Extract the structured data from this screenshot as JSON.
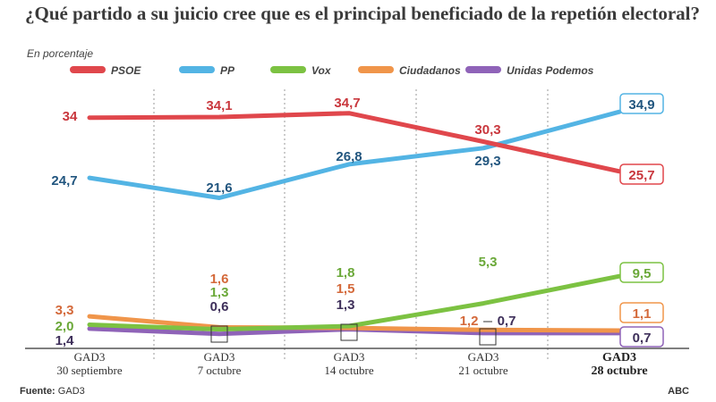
{
  "title": "¿Qué partido a su juicio cree que es el principal beneficiado de la repetión electoral?",
  "subtitle": "En porcentaje",
  "footer": {
    "source_label": "Fuente:",
    "source_value": "GAD3",
    "brand": "ABC"
  },
  "chart_data": {
    "type": "line",
    "categories": [
      "GAD3|30 septiembre",
      "GAD3|7 octubre",
      "GAD3|14 octubre",
      "GAD3|21 octubre",
      "GAD3|28 octubre"
    ],
    "series": [
      {
        "name": "PSOE",
        "color": "#e0474c",
        "values": [
          34,
          34.1,
          34.7,
          30.3,
          25.7
        ],
        "labels": [
          "34",
          "34,1",
          "34,7",
          "30,3",
          "25,7"
        ]
      },
      {
        "name": "PP",
        "color": "#53b4e4",
        "values": [
          24.7,
          21.6,
          26.8,
          29.3,
          34.9
        ],
        "labels": [
          "24,7",
          "21,6",
          "26,8",
          "29,3",
          "34,9"
        ]
      },
      {
        "name": "Vox",
        "color": "#7cc242",
        "values": [
          2.0,
          1.3,
          1.8,
          5.3,
          9.5
        ],
        "labels": [
          "2,0",
          "1,3",
          "1,8",
          "5,3",
          "9,5"
        ]
      },
      {
        "name": "Ciudadanos",
        "color": "#f0954a",
        "values": [
          3.3,
          1.6,
          1.5,
          1.2,
          1.1
        ],
        "labels": [
          "3,3",
          "1,6",
          "1,5",
          "1,2",
          "1,1"
        ]
      },
      {
        "name": "Unidas Podemos",
        "color": "#8f63b8",
        "values": [
          1.4,
          0.6,
          1.3,
          0.7,
          0.7
        ],
        "labels": [
          "1,4",
          "0,6",
          "1,3",
          "0,7",
          "0,7"
        ]
      }
    ],
    "label_colors": {
      "PSOE": "#c9373d",
      "PP": "#22567f",
      "Vox": "#6aa838",
      "Ciudadanos": "#d4693a",
      "Unidas Podemos": "#3e2f5a"
    },
    "legend_position": "top",
    "grid": "vertical dotted separators",
    "ylim": [
      0,
      37
    ]
  }
}
